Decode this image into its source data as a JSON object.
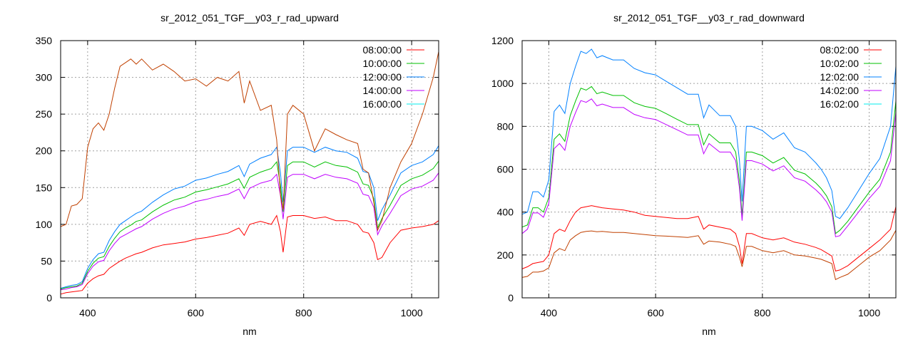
{
  "chart_data": [
    {
      "type": "line",
      "title": "sr_2012_051_TGF__y03_r_rad_upward",
      "xlabel": "nm",
      "ylabel": "",
      "xlim": [
        350,
        1050
      ],
      "ylim": [
        0,
        350
      ],
      "xticks": [
        400,
        600,
        800,
        1000
      ],
      "yticks": [
        0,
        50,
        100,
        150,
        200,
        250,
        300,
        350
      ],
      "grid": true,
      "legend_position": "top-right",
      "x": [
        350,
        360,
        370,
        380,
        390,
        400,
        410,
        420,
        430,
        440,
        450,
        460,
        470,
        480,
        490,
        500,
        520,
        540,
        560,
        580,
        600,
        620,
        640,
        660,
        680,
        690,
        700,
        720,
        740,
        750,
        757,
        762,
        770,
        780,
        800,
        820,
        840,
        860,
        880,
        900,
        910,
        920,
        930,
        937,
        945,
        960,
        980,
        1000,
        1020,
        1040,
        1050
      ],
      "series": [
        {
          "name": "08:00:00",
          "legend_color": "#ff0000",
          "line_color": "#ff0000",
          "values": [
            5,
            7,
            8,
            9,
            10,
            20,
            26,
            30,
            32,
            40,
            45,
            50,
            54,
            57,
            60,
            62,
            68,
            72,
            74,
            76,
            80,
            82,
            85,
            88,
            95,
            85,
            100,
            104,
            100,
            112,
            90,
            62,
            110,
            112,
            112,
            108,
            110,
            105,
            105,
            100,
            90,
            88,
            75,
            52,
            55,
            75,
            92,
            95,
            97,
            100,
            105
          ]
        },
        {
          "name": "10:00:00",
          "legend_color": "#00c000",
          "line_color": "#00c000",
          "values": [
            12,
            14,
            15,
            16,
            20,
            36,
            47,
            54,
            56,
            70,
            81,
            90,
            95,
            99,
            104,
            106,
            117,
            126,
            133,
            137,
            144,
            147,
            151,
            155,
            162,
            149,
            164,
            171,
            176,
            185,
            153,
            117,
            180,
            185,
            185,
            178,
            185,
            180,
            178,
            171,
            155,
            153,
            135,
            95,
            108,
            126,
            153,
            162,
            167,
            176,
            186
          ]
        },
        {
          "name": "12:00:00",
          "legend_color": "#0080ff",
          "line_color": "#0080ff",
          "values": [
            13,
            15,
            17,
            18,
            22,
            40,
            52,
            60,
            62,
            78,
            90,
            100,
            105,
            110,
            115,
            118,
            130,
            140,
            148,
            152,
            160,
            163,
            168,
            172,
            180,
            165,
            182,
            190,
            195,
            205,
            170,
            130,
            200,
            205,
            205,
            198,
            205,
            200,
            198,
            190,
            172,
            170,
            150,
            105,
            120,
            140,
            170,
            180,
            185,
            195,
            207
          ]
        },
        {
          "name": "14:00:00",
          "legend_color": "#c000ff",
          "line_color": "#c000ff",
          "values": [
            11,
            12,
            14,
            15,
            18,
            33,
            43,
            49,
            51,
            64,
            74,
            82,
            86,
            90,
            94,
            97,
            107,
            115,
            121,
            125,
            131,
            134,
            138,
            141,
            148,
            135,
            149,
            156,
            160,
            168,
            139,
            107,
            164,
            168,
            168,
            162,
            168,
            164,
            162,
            156,
            141,
            139,
            123,
            86,
            98,
            115,
            139,
            148,
            152,
            160,
            170
          ]
        },
        {
          "name": "16:00:00",
          "legend_color": "#00eeee",
          "line_color": "#c04000",
          "values": [
            97,
            100,
            125,
            127,
            135,
            205,
            230,
            238,
            228,
            250,
            285,
            315,
            320,
            325,
            318,
            325,
            310,
            318,
            308,
            295,
            298,
            288,
            300,
            295,
            308,
            265,
            295,
            255,
            262,
            215,
            140,
            120,
            250,
            262,
            250,
            200,
            230,
            222,
            215,
            210,
            175,
            170,
            130,
            92,
            105,
            150,
            185,
            210,
            250,
            300,
            335
          ]
        }
      ]
    },
    {
      "type": "line",
      "title": "sr_2012_051_TGF__y03_r_rad_downward",
      "xlabel": "nm",
      "ylabel": "",
      "xlim": [
        350,
        1050
      ],
      "ylim": [
        0,
        1200
      ],
      "xticks": [
        400,
        600,
        800,
        1000
      ],
      "yticks": [
        0,
        200,
        400,
        600,
        800,
        1000,
        1200
      ],
      "grid": true,
      "legend_position": "top-right",
      "x": [
        350,
        360,
        370,
        380,
        390,
        400,
        410,
        420,
        430,
        440,
        450,
        460,
        470,
        480,
        490,
        500,
        520,
        540,
        560,
        580,
        600,
        620,
        640,
        660,
        680,
        690,
        700,
        720,
        740,
        750,
        757,
        762,
        770,
        780,
        800,
        820,
        840,
        860,
        880,
        900,
        910,
        920,
        930,
        937,
        945,
        960,
        980,
        1000,
        1020,
        1040,
        1050
      ],
      "series": [
        {
          "name": "08:02:00",
          "legend_color": "#ff0000",
          "line_color": "#ff0000",
          "values": [
            135,
            145,
            160,
            165,
            170,
            200,
            300,
            320,
            310,
            360,
            400,
            420,
            425,
            430,
            425,
            420,
            415,
            410,
            400,
            385,
            380,
            375,
            370,
            370,
            380,
            320,
            340,
            330,
            320,
            300,
            240,
            160,
            300,
            300,
            280,
            270,
            280,
            260,
            250,
            235,
            225,
            210,
            195,
            125,
            130,
            150,
            190,
            230,
            270,
            320,
            425
          ]
        },
        {
          "name": "10:02:00",
          "legend_color": "#00c000",
          "line_color": "#00c000",
          "values": [
            330,
            340,
            420,
            420,
            400,
            468,
            740,
            765,
            730,
            850,
            918,
            978,
            969,
            986,
            952,
            960,
            944,
            944,
            910,
            893,
            884,
            859,
            833,
            808,
            808,
            714,
            765,
            723,
            723,
            680,
            544,
            383,
            680,
            680,
            663,
            629,
            655,
            595,
            578,
            536,
            510,
            476,
            425,
            300,
            315,
            357,
            425,
            493,
            553,
            680,
            918
          ]
        },
        {
          "name": "12:02:00",
          "legend_color": "#0080ff",
          "line_color": "#0080ff",
          "values": [
            390,
            400,
            495,
            495,
            470,
            550,
            870,
            900,
            860,
            1000,
            1080,
            1150,
            1140,
            1160,
            1120,
            1130,
            1110,
            1110,
            1070,
            1050,
            1040,
            1010,
            980,
            950,
            950,
            840,
            900,
            850,
            850,
            800,
            640,
            450,
            800,
            800,
            780,
            740,
            770,
            700,
            680,
            630,
            600,
            560,
            500,
            380,
            370,
            420,
            500,
            580,
            650,
            800,
            1080
          ]
        },
        {
          "name": "14:02:00",
          "legend_color": "#c000ff",
          "line_color": "#c000ff",
          "values": [
            300,
            320,
            396,
            396,
            376,
            440,
            696,
            720,
            688,
            800,
            864,
            920,
            912,
            928,
            896,
            904,
            888,
            888,
            856,
            840,
            832,
            808,
            784,
            760,
            760,
            672,
            720,
            680,
            680,
            640,
            512,
            360,
            640,
            640,
            624,
            592,
            616,
            560,
            544,
            504,
            480,
            448,
            400,
            285,
            290,
            336,
            400,
            464,
            520,
            640,
            864
          ]
        },
        {
          "name": "16:02:00",
          "legend_color": "#00eeee",
          "line_color": "#c04000",
          "values": [
            95,
            100,
            120,
            120,
            125,
            140,
            210,
            230,
            220,
            270,
            290,
            305,
            310,
            312,
            308,
            310,
            305,
            305,
            300,
            295,
            290,
            288,
            285,
            282,
            290,
            250,
            265,
            260,
            250,
            240,
            190,
            145,
            240,
            240,
            220,
            210,
            220,
            200,
            195,
            185,
            180,
            170,
            160,
            85,
            95,
            110,
            150,
            190,
            220,
            270,
            315
          ]
        }
      ]
    }
  ]
}
